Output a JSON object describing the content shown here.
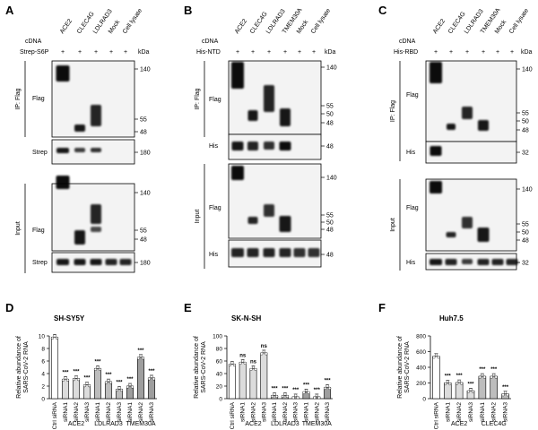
{
  "panels": {
    "A": {
      "letter": "A",
      "lanes": [
        "ACE2",
        "CLEC4G",
        "LDLRAD3",
        "Mock",
        "Cell lysate"
      ],
      "row_cdna": "cDNA",
      "row_protein": "Strep-S6P",
      "signs": [
        "+",
        "+",
        "+",
        "+",
        "+"
      ],
      "kda": "kDa",
      "ip_label": "IP: Flag",
      "input_label": "Input",
      "blots": [
        {
          "label": "Flag",
          "markers": [
            "140",
            "55",
            "48"
          ]
        },
        {
          "label": "Strep",
          "markers": [
            "180"
          ]
        },
        {
          "label": "Flag",
          "markers": [
            "140",
            "55",
            "48"
          ]
        },
        {
          "label": "Strep",
          "markers": [
            "180"
          ]
        }
      ]
    },
    "B": {
      "letter": "B",
      "lanes": [
        "ACE2",
        "CLEC4G",
        "LDLRAD3",
        "TMEM30A",
        "Mock",
        "Cell lysate"
      ],
      "row_cdna": "cDNA",
      "row_protein": "His-NTD",
      "signs": [
        "+",
        "+",
        "+",
        "+",
        "+",
        "+"
      ],
      "kda": "kDa",
      "ip_label": "IP: Flag",
      "input_label": "Input",
      "blots": [
        {
          "label": "Flag",
          "markers": [
            "140",
            "55",
            "50",
            "48"
          ]
        },
        {
          "label": "His",
          "markers": [
            "48"
          ]
        },
        {
          "label": "Flag",
          "markers": [
            "140",
            "55",
            "50",
            "48"
          ]
        },
        {
          "label": "His",
          "markers": [
            "48"
          ]
        }
      ]
    },
    "C": {
      "letter": "C",
      "lanes": [
        "ACE2",
        "CLEC4G",
        "LDLRAD3",
        "TMEM30A",
        "Mock",
        "Cell lysate"
      ],
      "row_cdna": "cDNA",
      "row_protein": "His-RBD",
      "signs": [
        "+",
        "+",
        "+",
        "+",
        "+",
        "+"
      ],
      "kda": "kDa",
      "ip_label": "IP: Flag",
      "input_label": "Input",
      "blots": [
        {
          "label": "Flag",
          "markers": [
            "140",
            "55",
            "50",
            "48"
          ]
        },
        {
          "label": "His",
          "markers": [
            "32"
          ]
        },
        {
          "label": "Flag",
          "markers": [
            "140",
            "55",
            "50",
            "48"
          ]
        },
        {
          "label": "His",
          "markers": [
            "32"
          ]
        }
      ]
    }
  },
  "chart_data": [
    {
      "panel": "D",
      "type": "bar",
      "title": "SH-SY5Y",
      "ylabel": "Relative abundance of SARS-CoV-2 RNA",
      "ylim": [
        0,
        10
      ],
      "yticks": [
        "0",
        "2",
        "4",
        "6",
        "8",
        "10"
      ],
      "categories": [
        "Ctrl siRNA",
        "siRNA1",
        "siRNA2",
        "siRNA3",
        "siRNA1",
        "siRNA2",
        "siRNA3",
        "siRNA1",
        "siRNA2",
        "siRNA3"
      ],
      "values": [
        9.8,
        3.1,
        3.2,
        2.2,
        4.8,
        2.7,
        1.5,
        2.0,
        6.6,
        3.3
      ],
      "significance": [
        "",
        "***",
        "***",
        "***",
        "***",
        "***",
        "***",
        "***",
        "***",
        "***"
      ],
      "groups": [
        {
          "label": "ACE2",
          "from": 1,
          "to": 3
        },
        {
          "label": "LDLRAD3",
          "from": 4,
          "to": 6
        },
        {
          "label": "TMEM30A",
          "from": 7,
          "to": 9
        }
      ]
    },
    {
      "panel": "E",
      "type": "bar",
      "title": "SK-N-SH",
      "ylabel": "Relative abundance of SARS-CoV-2 RNA",
      "ylim": [
        0,
        100
      ],
      "yticks": [
        "0",
        "20",
        "40",
        "60",
        "80",
        "100"
      ],
      "categories": [
        "Ctrl siRNA",
        "siRNA1",
        "siRNA2",
        "siRNA3",
        "siRNA1",
        "siRNA2",
        "siRNA3",
        "siRNA1",
        "siRNA2",
        "siRNA3"
      ],
      "values": [
        55,
        58,
        48,
        73,
        5,
        5,
        3,
        11,
        3,
        18
      ],
      "significance": [
        "",
        "ns",
        "ns",
        "ns",
        "***",
        "***",
        "***",
        "***",
        "***",
        "***"
      ],
      "groups": [
        {
          "label": "ACE2",
          "from": 1,
          "to": 3
        },
        {
          "label": "LDLRAD3",
          "from": 4,
          "to": 6
        },
        {
          "label": "TMEM30A",
          "from": 7,
          "to": 9
        }
      ]
    },
    {
      "panel": "F",
      "type": "bar",
      "title": "Huh7.5",
      "ylabel": "Relative abundance of SARS-CoV-2 RNA",
      "ylim": [
        0,
        800
      ],
      "yticks": [
        "0",
        "200",
        "400",
        "600",
        "800"
      ],
      "categories": [
        "Ctrl siRNA",
        "siRNA1",
        "siRNA2",
        "siRNA3",
        "siRNA1",
        "siRNA2",
        "siRNA3"
      ],
      "values": [
        540,
        200,
        205,
        100,
        285,
        285,
        60
      ],
      "significance": [
        "",
        "***",
        "***",
        "***",
        "***",
        "***",
        "***"
      ],
      "groups": [
        {
          "label": "ACE2",
          "from": 1,
          "to": 3
        },
        {
          "label": "CLEC4G",
          "from": 4,
          "to": 6
        }
      ]
    }
  ]
}
